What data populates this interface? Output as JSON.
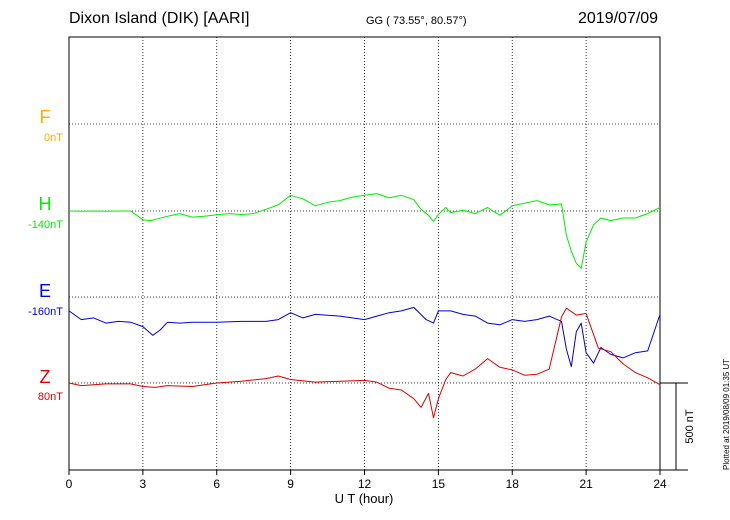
{
  "header": {
    "title": "Dixon Island (DIK)  [AARI]",
    "coords": "GG ( 73.55°,  80.57°)",
    "date": "2019/07/09"
  },
  "footer": {
    "plotted": "Plotted at 2019/08/09 01:35 UT"
  },
  "scale_label": "500 nT",
  "colors": {
    "F": "#ffaa00",
    "H": "#00ee00",
    "E": "#0000dd",
    "Z": "#dd0000"
  },
  "chart_data": {
    "type": "line",
    "title": "Dixon Island (DIK)  [AARI]",
    "xlabel": "U T (hour)",
    "ylabel": "",
    "xlim": [
      0,
      24
    ],
    "x_ticks": [
      "0",
      "3",
      "6",
      "9",
      "12",
      "15",
      "18",
      "21",
      "24"
    ],
    "scale_bar_nT": 500,
    "grid": true,
    "series": [
      {
        "name": "F",
        "baseline_label": "0nT",
        "x": [],
        "values": []
      },
      {
        "name": "H",
        "baseline_label": "-140nT",
        "x": [
          0,
          0.5,
          1,
          1.5,
          2,
          2.5,
          3,
          3.3,
          3.6,
          4,
          4.5,
          5,
          5.5,
          6,
          6.5,
          7,
          7.5,
          8,
          8.5,
          9,
          9.5,
          10,
          10.5,
          11,
          11.5,
          12,
          12.5,
          13,
          13.5,
          14,
          14.3,
          14.6,
          14.8,
          15,
          15.3,
          15.5,
          16,
          16.5,
          17,
          17.5,
          18,
          18.5,
          19,
          19.5,
          20,
          20.2,
          20.4,
          20.6,
          20.8,
          21,
          21.3,
          21.6,
          22,
          22.5,
          23,
          23.5,
          24
        ],
        "values": [
          0,
          -2,
          0,
          -2,
          0,
          0,
          -50,
          -55,
          -45,
          -30,
          -15,
          -35,
          -30,
          -22,
          -15,
          -20,
          -15,
          10,
          35,
          90,
          70,
          30,
          50,
          60,
          80,
          90,
          100,
          75,
          90,
          65,
          10,
          -25,
          -60,
          -20,
          20,
          -10,
          5,
          -15,
          20,
          -25,
          30,
          45,
          60,
          35,
          40,
          -140,
          -230,
          -300,
          -330,
          -180,
          -80,
          -40,
          -55,
          -40,
          -40,
          -15,
          20
        ]
      },
      {
        "name": "E",
        "baseline_label": "-160nT",
        "x": [
          0,
          0.5,
          1,
          1.5,
          2,
          2.5,
          3,
          3.4,
          3.7,
          4,
          4.5,
          5,
          6,
          7,
          8,
          8.5,
          9,
          9.5,
          10,
          11,
          12,
          13,
          13.5,
          14,
          14.5,
          14.8,
          15,
          15.5,
          16,
          16.5,
          17,
          17.5,
          18,
          18.5,
          19,
          19.5,
          20,
          20.2,
          20.4,
          20.6,
          20.8,
          21,
          21.3,
          21.6,
          22,
          22.5,
          23,
          23.5,
          24
        ],
        "values": [
          -80,
          -130,
          -120,
          -150,
          -140,
          -145,
          -170,
          -220,
          -190,
          -145,
          -150,
          -145,
          -145,
          -140,
          -140,
          -130,
          -90,
          -120,
          -100,
          -110,
          -130,
          -90,
          -80,
          -60,
          -130,
          -150,
          -80,
          -80,
          -100,
          -110,
          -150,
          -160,
          -130,
          -140,
          -130,
          -110,
          -140,
          -300,
          -400,
          -200,
          -150,
          -320,
          -380,
          -290,
          -330,
          -350,
          -320,
          -310,
          -100
        ]
      },
      {
        "name": "Z",
        "baseline_label": "80nT",
        "x": [
          0,
          0.5,
          1,
          1.5,
          2,
          2.5,
          3,
          3.5,
          4,
          5,
          6,
          7,
          8,
          8.5,
          9,
          10,
          11,
          12,
          12.5,
          13,
          13.5,
          14,
          14.3,
          14.6,
          14.8,
          15,
          15.3,
          15.5,
          16,
          16.5,
          17,
          17.5,
          18,
          18.5,
          19,
          19.5,
          20,
          20.2,
          20.6,
          21,
          21.5,
          22,
          22.5,
          23,
          23.5,
          24
        ],
        "values": [
          0,
          -15,
          -10,
          -5,
          -5,
          -5,
          -20,
          -25,
          -15,
          -20,
          0,
          10,
          25,
          40,
          20,
          5,
          10,
          15,
          5,
          -30,
          -40,
          -90,
          -140,
          -60,
          -200,
          -90,
          20,
          60,
          40,
          80,
          140,
          90,
          75,
          45,
          50,
          80,
          380,
          430,
          390,
          400,
          200,
          180,
          110,
          60,
          30,
          -10
        ]
      }
    ]
  }
}
